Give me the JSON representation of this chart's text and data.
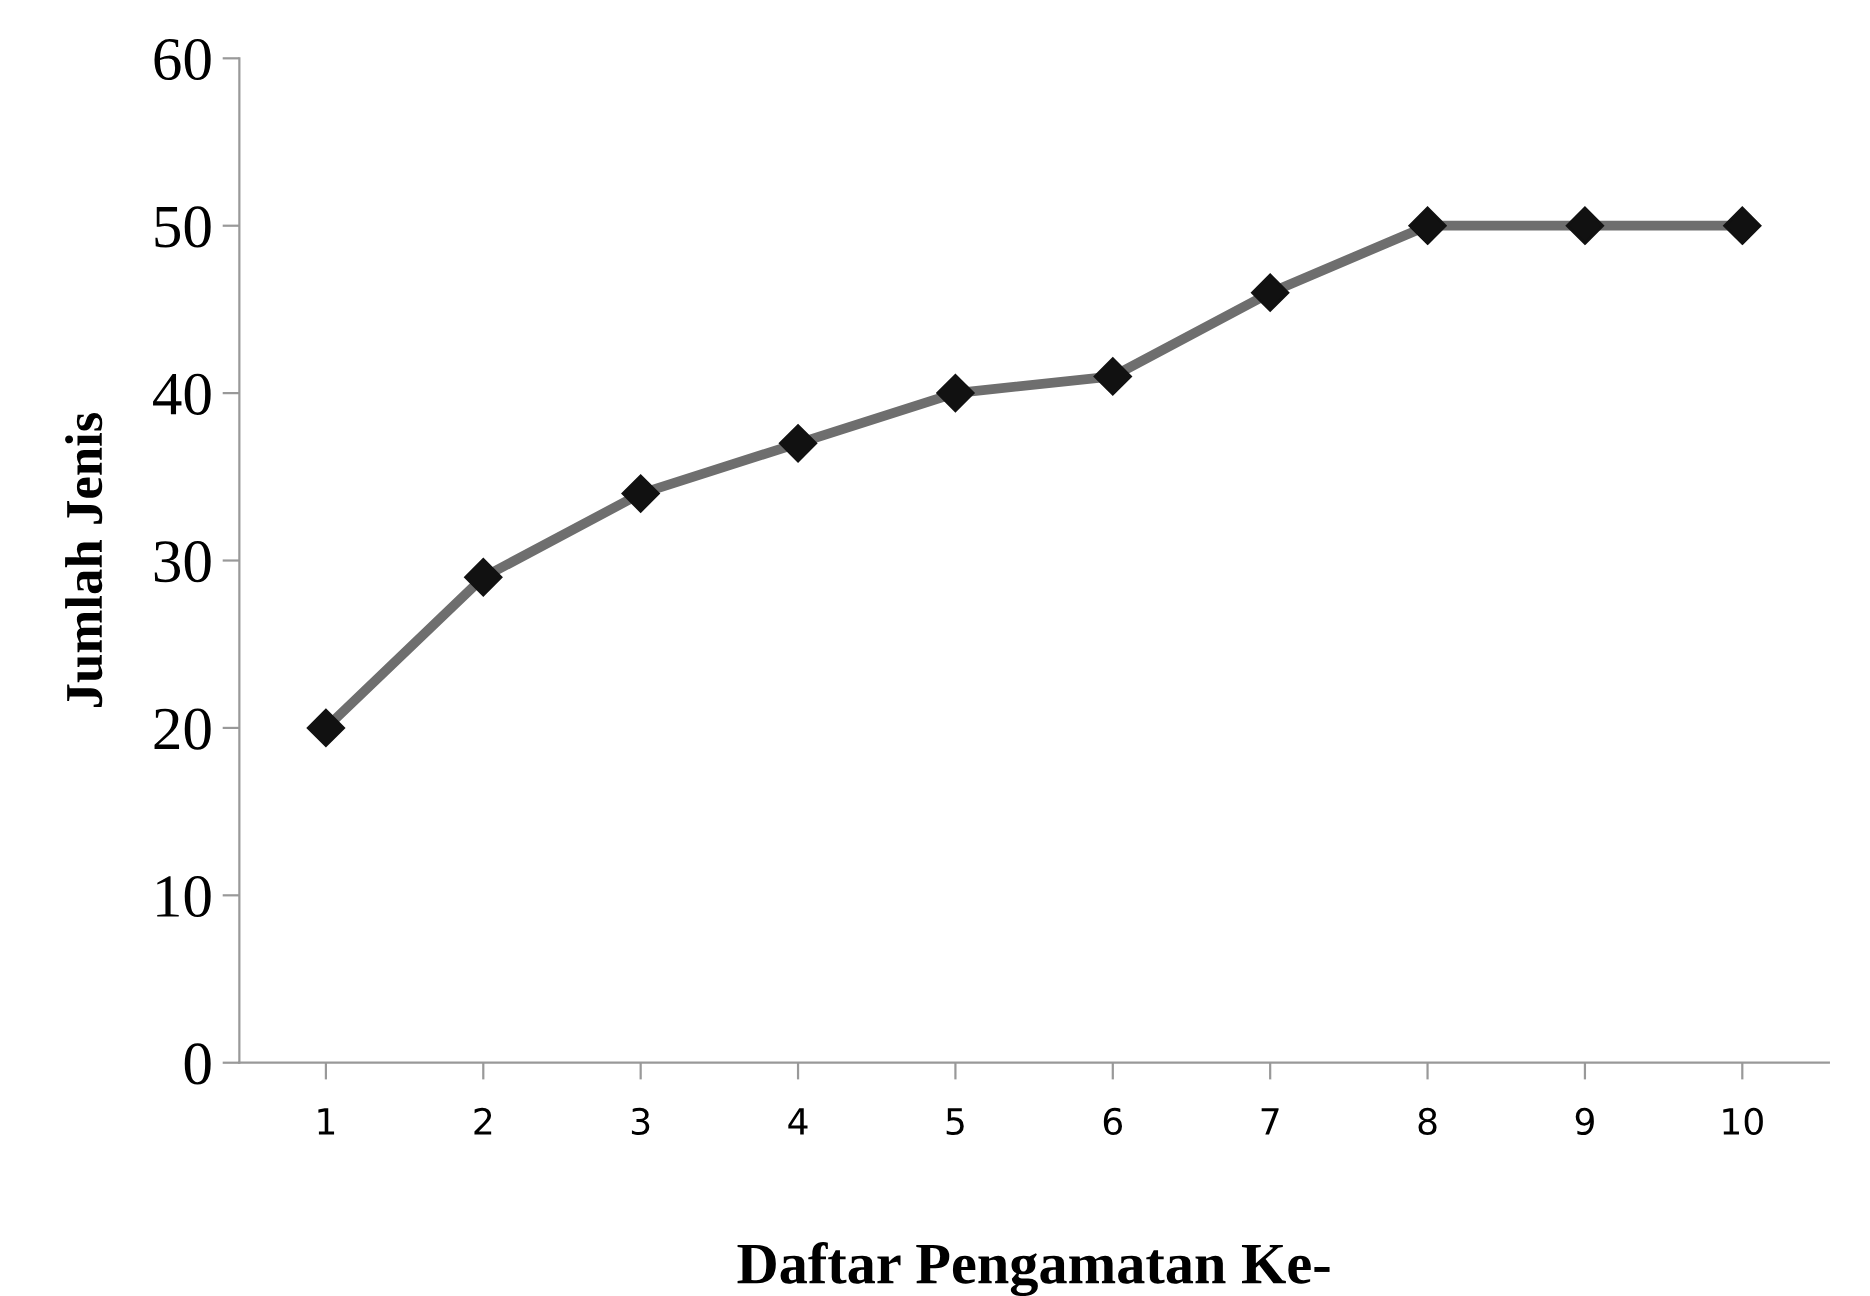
{
  "chart_data": {
    "type": "line",
    "xlabel": "Daftar Pengamatan Ke-",
    "ylabel": "Jumlah Jenis",
    "categories": [
      "1",
      "2",
      "3",
      "4",
      "5",
      "6",
      "7",
      "8",
      "9",
      "10"
    ],
    "series": [
      {
        "color": "#6e6e6e",
        "values": [
          20,
          29,
          34,
          37,
          40,
          41,
          46,
          50,
          50,
          50
        ]
      }
    ],
    "ylim": [
      0,
      60
    ],
    "yticks": [
      0,
      10,
      20,
      30,
      40,
      50,
      60
    ],
    "grid": false,
    "legend": false,
    "marker": "diamond",
    "line_style": "solid"
  }
}
